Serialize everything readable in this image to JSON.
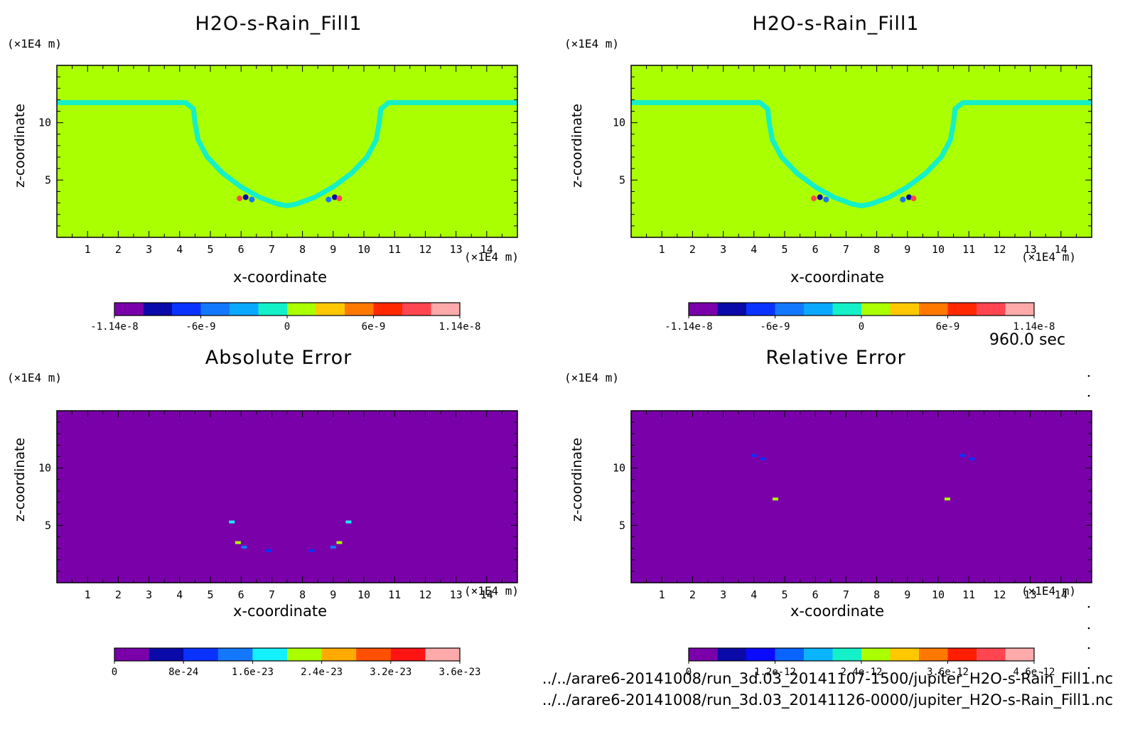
{
  "time_label": "960.0 sec",
  "file_paths": [
    "../../arare6-20141008/run_3d.03_20141107-1500/jupiter_H2O-s-Rain_Fill1.nc",
    "../../arare6-20141008/run_3d.03_20141126-0000/jupiter_H2O-s-Rain_Fill1.nc"
  ],
  "chart_data": [
    {
      "type": "heatmap",
      "title": "H2O-s-Rain_Fill1",
      "xlabel": "x-coordinate",
      "ylabel": "z-coordinate",
      "x_unit": "(×1E4 m)",
      "y_unit": "(×1E4 m)",
      "xlim": [
        0,
        15
      ],
      "ylim": [
        0,
        15
      ],
      "x_ticks": [
        1,
        2,
        3,
        4,
        5,
        6,
        7,
        8,
        9,
        10,
        11,
        12,
        13,
        14
      ],
      "y_ticks": [
        5,
        10
      ],
      "colorbar": {
        "colors": [
          "#7a00aa",
          "#0a0aa8",
          "#0a32ff",
          "#1478ff",
          "#0aa8ff",
          "#14f0c8",
          "#aaff00",
          "#ffc800",
          "#ff7800",
          "#ff2800",
          "#ff4650",
          "#ffaaaa"
        ],
        "tick_labels": [
          "-1.14e-8",
          "-6e-9",
          "0",
          "6e-9",
          "1.14e-8"
        ],
        "range": [
          -1.14e-08,
          1.14e-08
        ]
      },
      "background_value": 0,
      "band_value": -1.9e-09
    },
    {
      "type": "heatmap",
      "title": "H2O-s-Rain_Fill1",
      "xlabel": "x-coordinate",
      "ylabel": "z-coordinate",
      "x_unit": "(×1E4 m)",
      "y_unit": "(×1E4 m)",
      "xlim": [
        0,
        15
      ],
      "ylim": [
        0,
        15
      ],
      "x_ticks": [
        1,
        2,
        3,
        4,
        5,
        6,
        7,
        8,
        9,
        10,
        11,
        12,
        13,
        14
      ],
      "y_ticks": [
        5,
        10
      ],
      "colorbar": {
        "colors": [
          "#7a00aa",
          "#0a0aa8",
          "#0a32ff",
          "#1478ff",
          "#0aa8ff",
          "#14f0c8",
          "#aaff00",
          "#ffc800",
          "#ff7800",
          "#ff2800",
          "#ff4650",
          "#ffaaaa"
        ],
        "tick_labels": [
          "-1.14e-8",
          "-6e-9",
          "0",
          "6e-9",
          "1.14e-8"
        ],
        "range": [
          -1.14e-08,
          1.14e-08
        ]
      },
      "background_value": 0,
      "band_value": -1.9e-09
    },
    {
      "type": "heatmap",
      "title": "Absolute Error",
      "xlabel": "x-coordinate",
      "ylabel": "z-coordinate",
      "x_unit": "(×1E4 m)",
      "y_unit": "(×1E4 m)",
      "xlim": [
        0,
        15
      ],
      "ylim": [
        0,
        15
      ],
      "x_ticks": [
        1,
        2,
        3,
        4,
        5,
        6,
        7,
        8,
        9,
        10,
        11,
        12,
        13,
        14
      ],
      "y_ticks": [
        5,
        10
      ],
      "colorbar": {
        "colors": [
          "#7a00aa",
          "#0a0aa8",
          "#0a32ff",
          "#1478ff",
          "#14f0ff",
          "#aaff00",
          "#ffaa00",
          "#ff5000",
          "#ff1414",
          "#ffaaaa"
        ],
        "tick_labels": [
          "0",
          "8e-24",
          "1.6e-23",
          "2.4e-23",
          "3.2e-23",
          "3.6e-23"
        ],
        "range": [
          0,
          3.6e-23
        ]
      },
      "background_value": 0
    },
    {
      "type": "heatmap",
      "title": "Relative Error",
      "xlabel": "x-coordinate",
      "ylabel": "z-coordinate",
      "x_unit": "(×1E4 m)",
      "y_unit": "(×1E4 m)",
      "xlim": [
        0,
        15
      ],
      "ylim": [
        0,
        15
      ],
      "x_ticks": [
        1,
        2,
        3,
        4,
        5,
        6,
        7,
        8,
        9,
        10,
        11,
        12,
        13,
        14
      ],
      "y_ticks": [
        5,
        10
      ],
      "colorbar": {
        "colors": [
          "#7a00aa",
          "#0a0aa8",
          "#0a0aff",
          "#0a64ff",
          "#0ab4ff",
          "#14f0c8",
          "#aaff00",
          "#ffc800",
          "#ff7800",
          "#ff1e00",
          "#ff4650",
          "#ffaaaa"
        ],
        "tick_labels": [
          "0",
          "1.2e-12",
          "2.4e-12",
          "3.6e-12",
          "4.6e-12"
        ],
        "range": [
          0,
          4.6e-12
        ]
      },
      "background_value": 0
    }
  ]
}
